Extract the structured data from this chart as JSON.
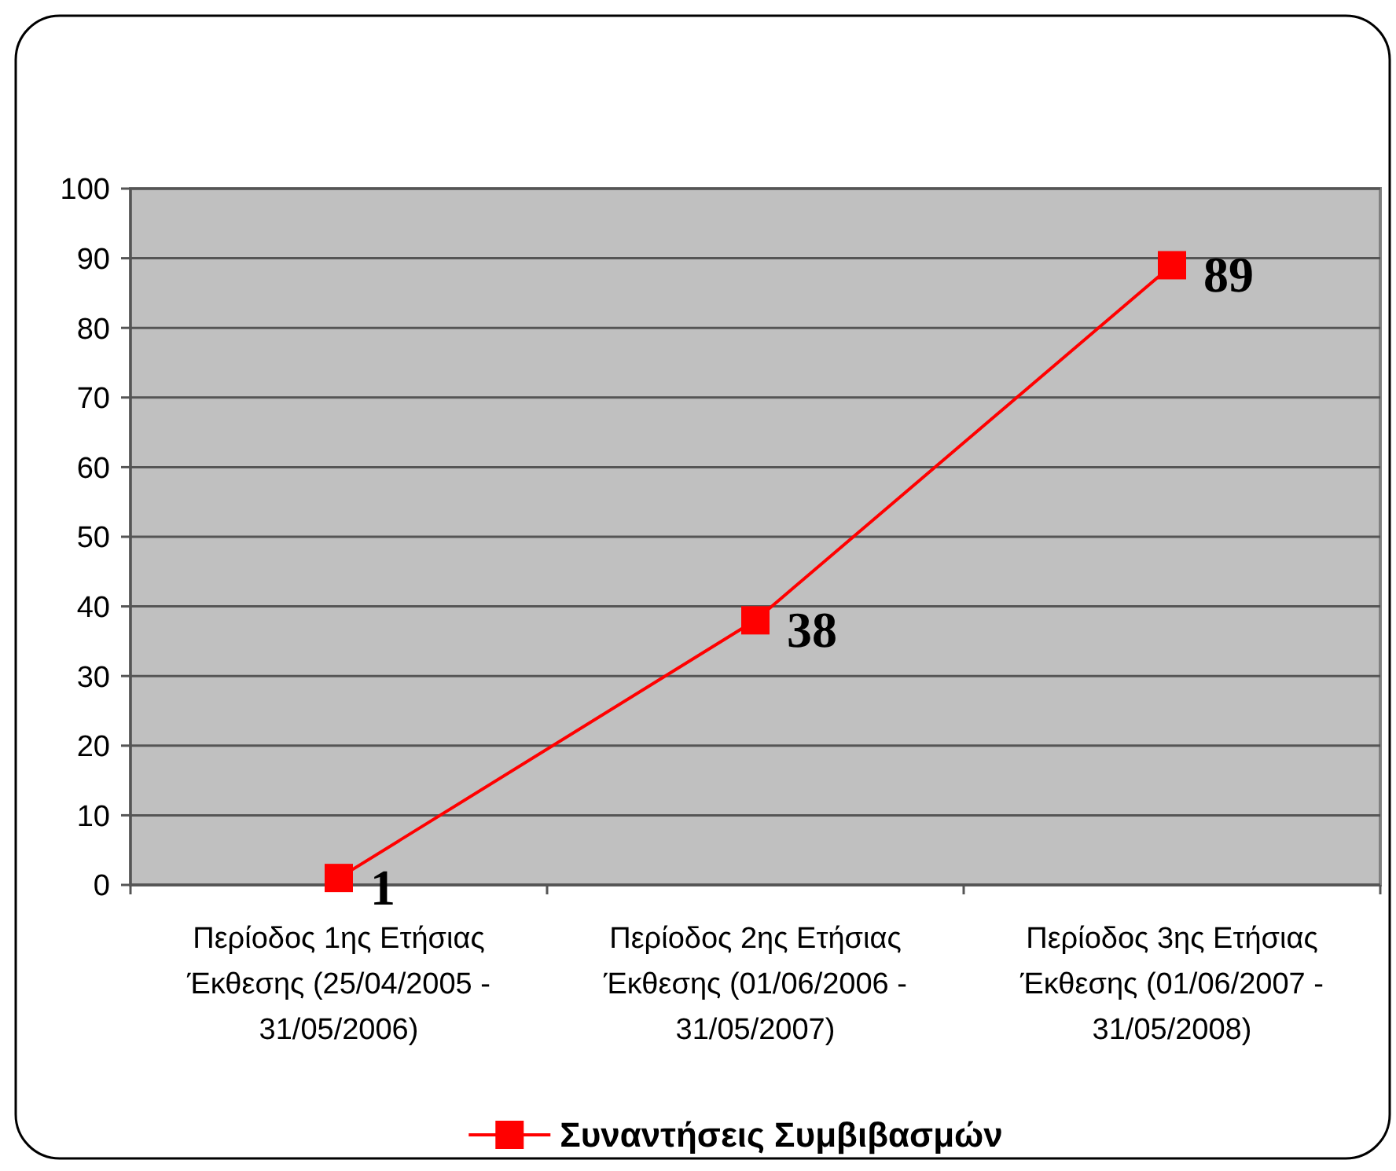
{
  "chart_data": {
    "type": "line",
    "categories": [
      "Περίοδος 1ης Ετήσιας Έκθεσης (25/04/2005 - 31/05/2006)",
      "Περίοδος 2ης Ετήσιας Έκθεσης (01/06/2006 - 31/05/2007)",
      "Περίοδος 3ης Ετήσιας Έκθεσης (01/06/2007 - 31/05/2008)"
    ],
    "series": [
      {
        "name": "Συναντήσεις Συμβιβασμών",
        "color": "#ff0000",
        "values": [
          1,
          38,
          89
        ]
      }
    ],
    "ylim": [
      0,
      100
    ],
    "yticks": [
      0,
      10,
      20,
      30,
      40,
      50,
      60,
      70,
      80,
      90,
      100
    ],
    "grid": "y",
    "legend": "bottom",
    "marker": "square",
    "line_style": "solid",
    "data_labels": true
  }
}
